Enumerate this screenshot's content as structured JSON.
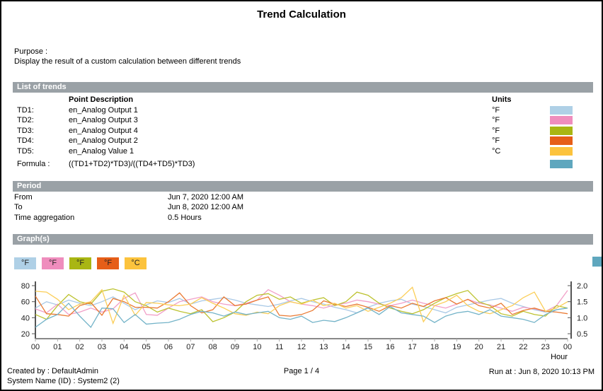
{
  "title": "Trend Calculation",
  "purpose": {
    "label": "Purpose :",
    "text": "Display the result of a custom calculation between different trends"
  },
  "sections": {
    "trends": {
      "header": "List of trends",
      "columns": {
        "description": "Point Description",
        "units": "Units"
      },
      "rows": [
        {
          "label": "TD1:",
          "description": "en_Analog Output 1",
          "units": "°F",
          "color": "#afd0e6"
        },
        {
          "label": "TD2:",
          "description": "en_Analog Output 3",
          "units": "°F",
          "color": "#ef8dbd"
        },
        {
          "label": "TD3:",
          "description": "en_Analog Output 4",
          "units": "°F",
          "color": "#a9b613"
        },
        {
          "label": "TD4:",
          "description": "en_Analog Output 2",
          "units": "°F",
          "color": "#e65e18"
        },
        {
          "label": "TD5:",
          "description": "en_Analog Value 1",
          "units": "°C",
          "color": "#fcc33d"
        }
      ],
      "formula": {
        "label": "Formula :",
        "expression": "((TD1+TD2)*TD3)/((TD4+TD5)*TD3)",
        "color": "#5fa7be"
      }
    },
    "period": {
      "header": "Period",
      "rows": [
        {
          "label": "From",
          "value": "Jun 7, 2020 12:00 AM"
        },
        {
          "label": "To",
          "value": "Jun 8, 2020 12:00 AM"
        },
        {
          "label": "Time aggregation",
          "value": "0.5 Hours"
        }
      ]
    },
    "graphs": {
      "header": "Graph(s)"
    }
  },
  "legend": {
    "items": [
      {
        "label": "°F",
        "color": "#afd0e6"
      },
      {
        "label": "°F",
        "color": "#ef8dbd"
      },
      {
        "label": "°F",
        "color": "#a9b613"
      },
      {
        "label": "°F",
        "color": "#e65e18"
      },
      {
        "label": "°C",
        "color": "#fcc33d"
      }
    ],
    "formula_color": "#5fa7be"
  },
  "chart_data": {
    "type": "line",
    "title": "",
    "xlabel": "Hour",
    "x_step_hours": 0.5,
    "xticks": [
      "00",
      "01",
      "02",
      "03",
      "04",
      "05",
      "06",
      "07",
      "08",
      "09",
      "10",
      "11",
      "12",
      "13",
      "14",
      "15",
      "16",
      "17",
      "18",
      "19",
      "20",
      "21",
      "22",
      "23",
      "00"
    ],
    "left_axis": {
      "ticks": [
        "80",
        "60",
        "40",
        "20"
      ],
      "range": [
        20,
        80
      ]
    },
    "right_axis": {
      "ticks": [
        "2.0",
        "1.5",
        "1.0",
        "0.5"
      ],
      "range": [
        0.5,
        2.0
      ]
    },
    "grid": false,
    "legend_position": "top-left",
    "series": [
      {
        "name": "TD1 en_Analog Output 1",
        "unit": "°F",
        "axis": "left",
        "color": "#a9c9e6",
        "values": [
          52,
          60,
          56,
          62,
          58,
          55,
          60,
          66,
          58,
          50,
          56,
          61,
          59,
          64,
          57,
          61,
          63,
          65,
          62,
          58,
          56,
          54,
          57,
          61,
          64,
          60,
          57,
          53,
          50,
          46,
          53,
          58,
          61,
          63,
          57,
          54,
          50,
          46,
          53,
          56,
          59,
          62,
          64,
          58,
          54,
          50,
          47,
          50,
          52
        ]
      },
      {
        "name": "TD2 en_Analog Output 3",
        "unit": "°F",
        "axis": "left",
        "color": "#f19fc7",
        "values": [
          51,
          46,
          57,
          44,
          47,
          52,
          47,
          51,
          64,
          71,
          44,
          43,
          52,
          60,
          63,
          66,
          60,
          57,
          55,
          58,
          62,
          75,
          68,
          60,
          57,
          55,
          52,
          56,
          58,
          62,
          60,
          57,
          55,
          58,
          62,
          58,
          55,
          52,
          57,
          63,
          58,
          56,
          52,
          48,
          53,
          51,
          48,
          55,
          74
        ]
      },
      {
        "name": "TD3 en_Analog Output 4",
        "unit": "°F",
        "axis": "left",
        "color": "#bcc22e",
        "values": [
          44,
          38,
          55,
          69,
          60,
          57,
          73,
          76,
          72,
          60,
          55,
          47,
          52,
          48,
          45,
          50,
          35,
          40,
          47,
          60,
          68,
          70,
          63,
          66,
          58,
          62,
          65,
          55,
          60,
          72,
          68,
          58,
          52,
          48,
          45,
          50,
          58,
          65,
          70,
          74,
          60,
          55,
          45,
          42,
          48,
          44,
          42,
          55,
          52
        ]
      },
      {
        "name": "TD4 en_Analog Output 2",
        "unit": "°F",
        "axis": "left",
        "color": "#ea7a33",
        "values": [
          67,
          45,
          44,
          42,
          55,
          59,
          43,
          64,
          60,
          53,
          53,
          52,
          60,
          71,
          55,
          46,
          50,
          66,
          55,
          57,
          62,
          66,
          43,
          42,
          44,
          49,
          61,
          57,
          54,
          57,
          53,
          48,
          55,
          52,
          58,
          54,
          61,
          65,
          57,
          63,
          55,
          52,
          58,
          44,
          49,
          52,
          48,
          47,
          45
        ]
      },
      {
        "name": "TD5 en_Analog Value 1",
        "unit": "°C",
        "axis": "left",
        "color": "#fbce58",
        "values": [
          73,
          72,
          63,
          50,
          57,
          60,
          75,
          33,
          68,
          43,
          59,
          58,
          56,
          55,
          57,
          65,
          58,
          52,
          45,
          43,
          47,
          45,
          55,
          60,
          57,
          62,
          55,
          58,
          52,
          55,
          48,
          53,
          58,
          65,
          78,
          35,
          55,
          60,
          68,
          55,
          48,
          45,
          50,
          55,
          65,
          72,
          48,
          52,
          60
        ]
      },
      {
        "name": "Formula ((TD1+TD2)*TD3)/((TD4+TD5)*TD3)",
        "unit": "",
        "axis": "right",
        "color": "#73b3c8",
        "values": [
          0.7,
          0.95,
          1.1,
          1.45,
          1.05,
          0.7,
          1.3,
          1.28,
          0.85,
          1.1,
          0.8,
          0.83,
          0.85,
          0.95,
          1.1,
          1.2,
          1.15,
          1.05,
          1.18,
          1.1,
          1.15,
          1.2,
          1.0,
          0.95,
          1.05,
          0.85,
          0.92,
          0.88,
          1.0,
          1.15,
          1.3,
          1.1,
          1.35,
          1.15,
          1.1,
          1.05,
          0.85,
          1.05,
          1.15,
          1.2,
          1.1,
          1.25,
          1.05,
          1.0,
          0.95,
          0.85,
          1.1,
          1.25,
          1.3
        ]
      }
    ]
  },
  "footer": {
    "created_by": "Created by : DefaultAdmin",
    "system_name": "System Name (ID) : System2 (2)",
    "page": "Page  1 / 4",
    "run_at": "Run at : Jun 8, 2020 10:13 PM"
  }
}
